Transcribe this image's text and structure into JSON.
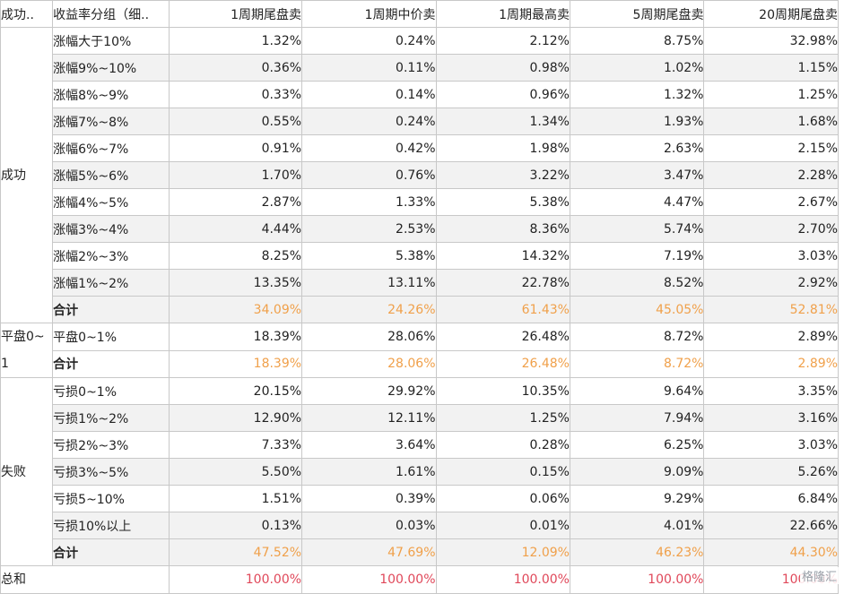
{
  "headers": [
    "成功..",
    "收益率分组（细..",
    "1周期尾盘卖",
    "1周期中价卖",
    "1周期最高卖",
    "5周期尾盘卖",
    "20周期尾盘卖"
  ],
  "sections": [
    {
      "name": "成功",
      "rows": [
        {
          "label": "涨幅大于10%",
          "values": [
            "1.32%",
            "0.24%",
            "2.12%",
            "8.75%",
            "32.98%"
          ]
        },
        {
          "label": "涨幅9%~10%",
          "values": [
            "0.36%",
            "0.11%",
            "0.98%",
            "1.02%",
            "1.15%"
          ]
        },
        {
          "label": "涨幅8%~9%",
          "values": [
            "0.33%",
            "0.14%",
            "0.96%",
            "1.32%",
            "1.25%"
          ]
        },
        {
          "label": "涨幅7%~8%",
          "values": [
            "0.55%",
            "0.24%",
            "1.34%",
            "1.93%",
            "1.68%"
          ]
        },
        {
          "label": "涨幅6%~7%",
          "values": [
            "0.91%",
            "0.42%",
            "1.98%",
            "2.63%",
            "2.15%"
          ]
        },
        {
          "label": "涨幅5%~6%",
          "values": [
            "1.70%",
            "0.76%",
            "3.22%",
            "3.47%",
            "2.28%"
          ]
        },
        {
          "label": "涨幅4%~5%",
          "values": [
            "2.87%",
            "1.33%",
            "5.38%",
            "4.47%",
            "2.67%"
          ]
        },
        {
          "label": "涨幅3%~4%",
          "values": [
            "4.44%",
            "2.53%",
            "8.36%",
            "5.74%",
            "2.70%"
          ]
        },
        {
          "label": "涨幅2%~3%",
          "values": [
            "8.25%",
            "5.38%",
            "14.32%",
            "7.19%",
            "3.03%"
          ]
        },
        {
          "label": "涨幅1%~2%",
          "values": [
            "13.35%",
            "13.11%",
            "22.78%",
            "8.52%",
            "2.92%"
          ]
        },
        {
          "label": "合计",
          "values": [
            "34.09%",
            "24.26%",
            "61.43%",
            "45.05%",
            "52.81%"
          ],
          "total": true
        }
      ]
    },
    {
      "name": "平盘0~1",
      "rows": [
        {
          "label": "平盘0~1%",
          "values": [
            "18.39%",
            "28.06%",
            "26.48%",
            "8.72%",
            "2.89%"
          ]
        },
        {
          "label": "合计",
          "values": [
            "18.39%",
            "28.06%",
            "26.48%",
            "8.72%",
            "2.89%"
          ],
          "total": true
        }
      ]
    },
    {
      "name": "失败",
      "rows": [
        {
          "label": "亏损0~1%",
          "values": [
            "20.15%",
            "29.92%",
            "10.35%",
            "9.64%",
            "3.35%"
          ]
        },
        {
          "label": "亏损1%~2%",
          "values": [
            "12.90%",
            "12.11%",
            "1.25%",
            "7.94%",
            "3.16%"
          ]
        },
        {
          "label": "亏损2%~3%",
          "values": [
            "7.33%",
            "3.64%",
            "0.28%",
            "6.25%",
            "3.03%"
          ]
        },
        {
          "label": "亏损3%~5%",
          "values": [
            "5.50%",
            "1.61%",
            "0.15%",
            "9.09%",
            "5.26%"
          ]
        },
        {
          "label": "亏损5~10%",
          "values": [
            "1.51%",
            "0.39%",
            "0.06%",
            "9.29%",
            "6.84%"
          ]
        },
        {
          "label": "亏损10%以上",
          "values": [
            "0.13%",
            "0.03%",
            "0.01%",
            "4.01%",
            "22.66%"
          ]
        },
        {
          "label": "合计",
          "values": [
            "47.52%",
            "47.69%",
            "12.09%",
            "46.23%",
            "44.30%"
          ],
          "total": true
        }
      ]
    }
  ],
  "grand_total": {
    "name": "总和",
    "values": [
      "100.00%",
      "100.00%",
      "100.00%",
      "100.00%",
      "100.00%"
    ]
  },
  "watermark": "格隆汇",
  "colors": {
    "total_text": "#f0a04a",
    "grand_total_text": "#e0485a",
    "shaded_row": "#f2f2f2",
    "grid_line": "#c8c8c8"
  }
}
